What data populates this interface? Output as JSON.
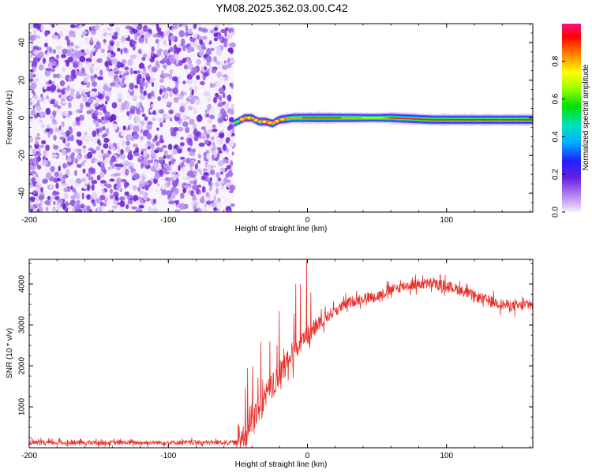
{
  "title": "YM08.2025.362.03.00.C42",
  "colors": {
    "noise": "#8a2be2",
    "snr_line": "#e8302a",
    "axis": "#000000"
  },
  "chart_data": [
    {
      "type": "heatmap",
      "name": "spectrogram",
      "xlabel": "Height of straight line (km)",
      "ylabel": "Frequency (Hz)",
      "xlim": [
        -200,
        162
      ],
      "ylim": [
        -50,
        50
      ],
      "xticks": [
        -200,
        -100,
        0,
        100
      ],
      "xtick_labels": [
        "-200",
        "-100",
        "0",
        "100"
      ],
      "yticks": [
        -40,
        -20,
        0,
        20,
        40
      ],
      "ytick_labels": [
        "-40",
        "-20",
        "0",
        "20",
        "40"
      ],
      "noise_region_x": [
        -200,
        -53
      ],
      "signal_ridge": {
        "x": [
          -53,
          -45,
          -40,
          -35,
          -30,
          -25,
          -20,
          -10,
          0,
          10,
          20,
          30,
          40,
          50,
          60,
          90,
          120,
          150,
          162
        ],
        "freq_hz": [
          -3,
          0,
          0,
          -2,
          -2,
          -3,
          -1,
          0,
          0,
          0,
          0,
          0,
          0,
          0,
          0,
          -1,
          -1,
          -1,
          -1
        ],
        "amplitude": [
          0.3,
          0.55,
          0.55,
          0.6,
          0.65,
          0.6,
          0.75,
          0.85,
          0.9,
          0.95,
          0.9,
          0.85,
          0.7,
          0.6,
          0.95,
          0.95,
          0.95,
          0.95,
          0.95
        ]
      },
      "colorbar": {
        "label": "Normalized spectral amplitude",
        "range": [
          0.0,
          1.0
        ],
        "ticks": [
          0.0,
          0.2,
          0.4,
          0.6,
          0.8
        ],
        "tick_labels": [
          "0.0",
          "0.2",
          "0.4",
          "0.6",
          "0.8"
        ]
      }
    },
    {
      "type": "line",
      "name": "snr",
      "xlabel": "Height of straight line (km)",
      "ylabel": "SNR (10 * v/v)",
      "xlim": [
        -200,
        162
      ],
      "ylim": [
        0,
        4600
      ],
      "xticks": [
        -200,
        -100,
        0,
        100
      ],
      "xtick_labels": [
        "-200",
        "-100",
        "0",
        "100"
      ],
      "yticks": [
        1000,
        2000,
        3000,
        4000
      ],
      "ytick_labels": [
        "1000",
        "2000",
        "3000",
        "4000"
      ],
      "trend": {
        "x": [
          -200,
          -50,
          -40,
          -30,
          -20,
          -10,
          0,
          10,
          20,
          30,
          40,
          50,
          60,
          70,
          80,
          90,
          100,
          110,
          120,
          130,
          140,
          150,
          162
        ],
        "y": [
          120,
          130,
          700,
          1200,
          1800,
          2300,
          2750,
          3100,
          3350,
          3550,
          3650,
          3700,
          3850,
          3950,
          4000,
          4000,
          3950,
          3850,
          3700,
          3600,
          3500,
          3450,
          3500
        ]
      }
    }
  ]
}
